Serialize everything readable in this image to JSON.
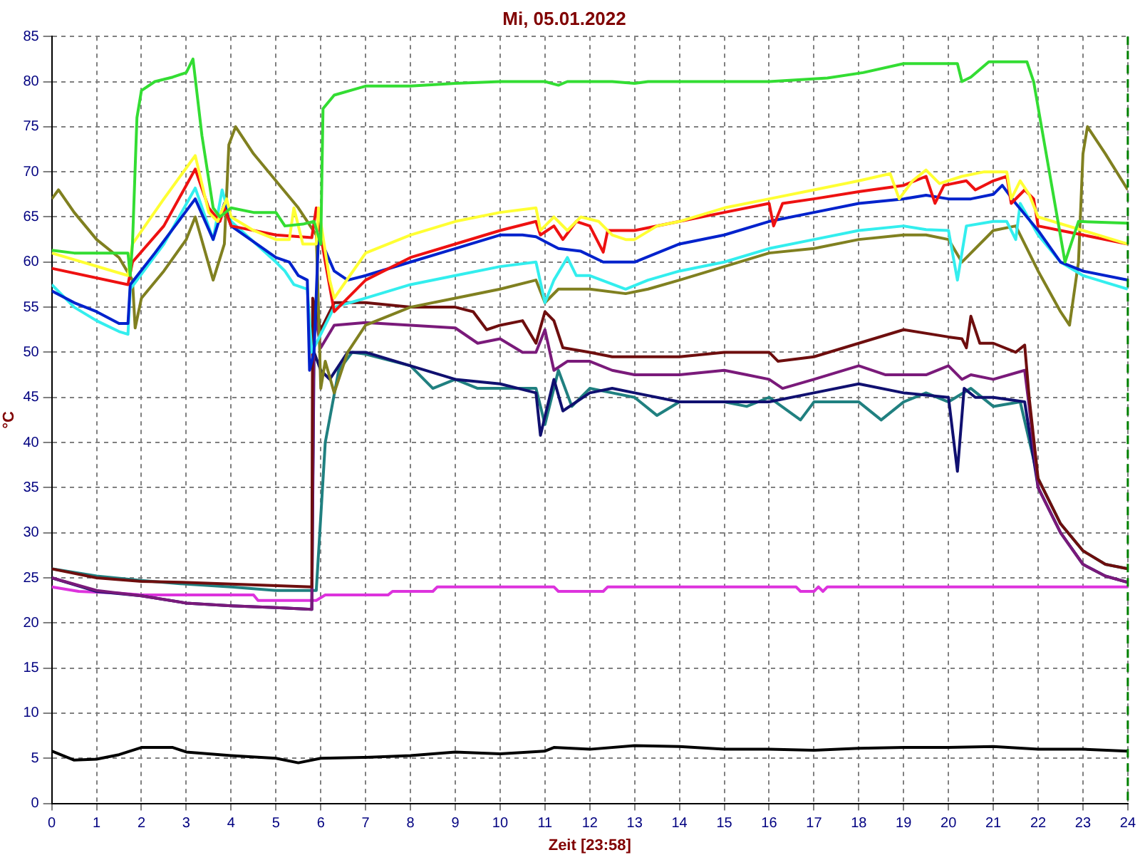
{
  "chart_data": {
    "type": "line",
    "title": "Mi, 05.01.2022",
    "xlabel": "Zeit [23:58]",
    "ylabel": "°C",
    "xlim": [
      0,
      24
    ],
    "xticks": [
      0,
      1,
      2,
      3,
      4,
      5,
      6,
      7,
      8,
      9,
      10,
      11,
      12,
      13,
      14,
      15,
      16,
      17,
      18,
      19,
      20,
      21,
      22,
      23,
      24
    ],
    "ylim": [
      0,
      85
    ],
    "yticks": [
      0,
      5,
      10,
      15,
      20,
      25,
      30,
      35,
      40,
      45,
      50,
      55,
      60,
      65,
      70,
      75,
      80,
      85
    ],
    "grid": true,
    "legend": false,
    "marker": "none",
    "line_style": "solid",
    "ref_lines": [
      {
        "axis": "x",
        "value": 24,
        "color": "#008000",
        "line_style": "dashed"
      }
    ],
    "series": [
      {
        "color": "#33dd33",
        "x": [
          0,
          0.5,
          1,
          1.7,
          1.75,
          1.8,
          1.9,
          2,
          2.3,
          2.7,
          3,
          3.15,
          3.35,
          3.6,
          3.75,
          4,
          4.5,
          5,
          5.2,
          5.6,
          5.85,
          6,
          6.05,
          6.3,
          7,
          8,
          9,
          10,
          11,
          11.3,
          11.5,
          12.5,
          13,
          13.3,
          16,
          17.3,
          18.1,
          19,
          20.2,
          20.3,
          20.5,
          20.9,
          21.75,
          21.9,
          22.6,
          22.9,
          24
        ],
        "values": [
          61.3,
          61,
          61,
          61,
          58.5,
          62,
          76,
          79,
          80,
          80.5,
          81,
          82.5,
          74,
          66,
          65,
          66,
          65.5,
          65.5,
          64,
          64.2,
          64.5,
          62,
          77,
          78.5,
          79.5,
          79.5,
          79.8,
          80,
          80,
          79.6,
          80,
          80,
          79.8,
          80,
          80,
          80.4,
          81,
          82,
          82,
          80,
          80.5,
          82.2,
          82.2,
          80,
          60,
          64.5,
          64.3
        ]
      },
      {
        "color": "#ffff33",
        "x": [
          0,
          1.7,
          1.8,
          2.5,
          3.2,
          3.5,
          3.7,
          3.9,
          4,
          4.5,
          5,
          5.3,
          5.4,
          5.6,
          5.9,
          5.95,
          6.2,
          6.3,
          7,
          8,
          9,
          10,
          10.8,
          10.9,
          11.2,
          11.5,
          11.8,
          12.2,
          12.5,
          12.8,
          13,
          13.5,
          14,
          15,
          16,
          17,
          18,
          18.7,
          18.9,
          19.2,
          19.5,
          19.8,
          20.3,
          20.8,
          21.3,
          21.4,
          21.6,
          21.8,
          22,
          23,
          24
        ],
        "values": [
          61,
          58.5,
          62,
          67,
          71.8,
          65.5,
          64.5,
          67,
          65,
          63.5,
          62.5,
          62.5,
          66,
          62,
          62,
          66,
          58,
          56,
          61,
          63,
          64.5,
          65.5,
          66,
          63.5,
          65,
          63.5,
          65,
          64.5,
          63,
          62.5,
          62.5,
          64,
          64.5,
          66,
          67,
          68,
          69,
          69.8,
          67,
          69,
          70.2,
          68.7,
          69.5,
          70,
          70,
          67,
          69,
          67.5,
          65,
          63.5,
          62
        ]
      },
      {
        "color": "#ee1111",
        "x": [
          0,
          1.7,
          1.8,
          2.5,
          3.2,
          3.5,
          3.75,
          3.85,
          4,
          5,
          5.8,
          5.9,
          6.1,
          6.3,
          7,
          8,
          9,
          10,
          10.8,
          10.9,
          11.2,
          11.4,
          11.7,
          12,
          12.3,
          12.4,
          13,
          14,
          15,
          16,
          16.1,
          16.3,
          17,
          18,
          19,
          19.5,
          19.7,
          19.9,
          20.4,
          20.6,
          21,
          21.3,
          21.4,
          21.7,
          21.9,
          22,
          22.5,
          23,
          24
        ],
        "values": [
          59.3,
          57.5,
          60,
          64,
          70.3,
          66,
          64.5,
          66,
          64,
          63,
          62.7,
          66,
          60,
          54.5,
          58,
          60.5,
          62,
          63.5,
          64.5,
          63,
          64,
          62.5,
          64.5,
          64,
          61.1,
          63.5,
          63.5,
          64.5,
          65.5,
          66.5,
          64,
          66.5,
          67,
          67.8,
          68.5,
          69.5,
          66.5,
          68.5,
          69,
          68,
          69,
          69.5,
          66.5,
          68,
          67,
          64,
          63.5,
          63,
          62
        ]
      },
      {
        "color": "#0022cc",
        "x": [
          0,
          0.5,
          1,
          1.5,
          1.7,
          1.75,
          2.3,
          3.2,
          3.6,
          3.85,
          4,
          5,
          5.3,
          5.5,
          5.7,
          5.75,
          5.85,
          5.95,
          6.3,
          6.6,
          7,
          8,
          9,
          10,
          10.5,
          10.8,
          11.3,
          11.8,
          12.3,
          13,
          13.5,
          14,
          15,
          16,
          17,
          18,
          19,
          19.5,
          20,
          20.5,
          21,
          21.2,
          21.5,
          22,
          22.5,
          23,
          24
        ],
        "values": [
          56.8,
          55.5,
          54.5,
          53.2,
          53.2,
          57.5,
          61,
          67,
          62.5,
          66.5,
          64,
          60.5,
          60,
          58.5,
          58,
          48,
          50,
          63,
          59,
          58,
          58.5,
          60,
          61.5,
          63,
          63,
          62.8,
          61.5,
          61.2,
          60,
          60,
          61,
          62,
          63,
          64.5,
          65.5,
          66.5,
          67,
          67.4,
          67,
          67,
          67.5,
          68.5,
          66.5,
          63.5,
          60,
          59,
          58
        ]
      },
      {
        "color": "#33eeee",
        "x": [
          0,
          0.5,
          1,
          1.5,
          1.7,
          1.75,
          2.5,
          3.2,
          3.6,
          3.8,
          4,
          5,
          5.2,
          5.4,
          5.7,
          5.8,
          6,
          6.3,
          7,
          8,
          9,
          10,
          10.8,
          11,
          11.2,
          11.5,
          11.7,
          12,
          12.8,
          13.3,
          14,
          15,
          16,
          17,
          18,
          19,
          19.5,
          20,
          20.2,
          20.4,
          21,
          21.3,
          21.5,
          21.6,
          22,
          22.5,
          23,
          24
        ],
        "values": [
          57.5,
          55,
          53.5,
          52.3,
          52,
          57,
          62,
          68.2,
          62.5,
          68,
          64.5,
          60,
          59,
          57.5,
          57,
          50,
          52,
          55,
          56,
          57.5,
          58.5,
          59.5,
          60,
          55.5,
          58,
          60.5,
          58.5,
          58.5,
          57,
          58,
          59,
          60,
          61.5,
          62.5,
          63.5,
          64,
          63.6,
          63.5,
          58,
          64,
          64.5,
          64.5,
          62.5,
          66.5,
          63,
          60,
          58.5,
          57
        ]
      },
      {
        "color": "#808020",
        "x": [
          0,
          0.15,
          0.5,
          1,
          1.5,
          1.8,
          1.86,
          2,
          2.5,
          3,
          3.2,
          3.6,
          3.85,
          3.95,
          4.1,
          4.5,
          5,
          5.5,
          5.9,
          6,
          6.1,
          6.3,
          6.6,
          7,
          8,
          9,
          10,
          10.8,
          11,
          11.3,
          12,
          12.8,
          13.3,
          14,
          15,
          16,
          17,
          18,
          19,
          19.5,
          20,
          20.3,
          21,
          21.5,
          21.7,
          22,
          22.5,
          22.7,
          22.9,
          23,
          23.1,
          23.5,
          24
        ],
        "values": [
          67,
          68,
          65.5,
          62.5,
          60.5,
          58,
          52.7,
          56,
          59,
          62.5,
          65,
          58,
          62,
          73,
          75,
          72,
          69,
          66,
          63,
          46,
          49,
          45.5,
          50,
          53,
          55,
          56,
          57,
          58,
          55.5,
          57,
          57,
          56.5,
          57,
          58,
          59.5,
          61,
          61.5,
          62.5,
          63,
          63,
          62.5,
          60,
          63.5,
          64,
          62,
          59,
          54.5,
          53,
          60,
          72,
          75,
          72,
          68
        ]
      },
      {
        "color": "#6e0e0e",
        "x": [
          0,
          1,
          2,
          2.9,
          5.8,
          5.82,
          6,
          6.3,
          7,
          8,
          9,
          9.4,
          9.7,
          10,
          10.5,
          10.8,
          11,
          11.2,
          11.4,
          12,
          12.5,
          13,
          14,
          15,
          16,
          16.2,
          17,
          18,
          19,
          20,
          20.3,
          20.4,
          20.5,
          20.7,
          21,
          21.5,
          21.7,
          21.8,
          22,
          22.5,
          23,
          23.5,
          24
        ],
        "values": [
          26,
          25,
          24.6,
          24.5,
          24,
          56,
          52.5,
          55.5,
          55.5,
          55,
          55,
          54.5,
          52.5,
          53,
          53.5,
          51,
          54.5,
          53.5,
          50.5,
          50,
          49.5,
          49.5,
          49.5,
          50,
          50,
          49,
          49.5,
          51,
          52.5,
          51.7,
          51.5,
          50.5,
          54,
          51,
          51,
          50,
          50.8,
          45,
          36,
          31,
          28,
          26.5,
          26
        ]
      },
      {
        "color": "#7a1a7a",
        "x": [
          0,
          1,
          2,
          3,
          4,
          5,
          5.8,
          5.85,
          6,
          6.3,
          7,
          8,
          9,
          9.5,
          10,
          10.5,
          10.8,
          11,
          11.2,
          11.5,
          12,
          12.5,
          13,
          14,
          15,
          15.5,
          16,
          16.3,
          17,
          18,
          18.6,
          19,
          19.5,
          20,
          20.3,
          20.5,
          21,
          21.7,
          21.8,
          22,
          22.5,
          23,
          23.5,
          24
        ],
        "values": [
          25,
          23.6,
          23,
          22.2,
          21.9,
          21.7,
          21.5,
          55,
          50.5,
          53,
          53.3,
          53,
          52.7,
          51,
          51.5,
          50,
          50,
          52.5,
          48,
          49,
          49,
          48,
          47.5,
          47.5,
          48,
          47.5,
          47,
          46,
          47,
          48.5,
          47.5,
          47.5,
          47.5,
          48.5,
          47,
          47.5,
          47,
          48,
          44,
          35,
          30,
          26.5,
          25.2,
          24.5
        ]
      },
      {
        "color": "#101070",
        "x": [
          0,
          1,
          2,
          3,
          4,
          5,
          5.8,
          5.85,
          6,
          6.2,
          6.6,
          7,
          8,
          9,
          10,
          10.8,
          10.9,
          11.2,
          11.4,
          12,
          12.5,
          13,
          14,
          15,
          16,
          17,
          18,
          19,
          20,
          20.2,
          20.35,
          20.6,
          21,
          21.7,
          22,
          22.5,
          23,
          23.5,
          24
        ],
        "values": [
          25,
          23.5,
          23,
          22.2,
          21.9,
          21.7,
          21.5,
          50,
          48,
          47,
          50,
          50,
          48.5,
          47,
          46.5,
          45.5,
          40.8,
          47,
          43.5,
          45.5,
          46,
          45.5,
          44.5,
          44.5,
          44.5,
          45.5,
          46.5,
          45.5,
          45,
          36.8,
          46,
          45,
          45,
          44.5,
          35,
          30,
          26.5,
          25.2,
          24.5
        ]
      },
      {
        "color": "#208080",
        "x": [
          0,
          1,
          2,
          3,
          4,
          5,
          5.9,
          6.1,
          6.4,
          6.7,
          7,
          8,
          8.5,
          9,
          9.5,
          10,
          10.8,
          11,
          11.3,
          11.6,
          12,
          12.5,
          13,
          13.5,
          14,
          15,
          15.5,
          16,
          16.7,
          17,
          18,
          18.5,
          19,
          19.5,
          20,
          20.5,
          21,
          21.6,
          22,
          22.5,
          23,
          23.5,
          24
        ],
        "values": [
          26,
          25.2,
          24.7,
          24.3,
          24,
          23.6,
          23.6,
          40,
          48,
          50,
          49.8,
          48.5,
          46,
          47,
          46,
          46,
          46,
          42,
          48,
          44,
          46,
          45.5,
          45,
          43,
          44.5,
          44.5,
          44,
          45,
          42.5,
          44.5,
          44.5,
          42.5,
          44.5,
          45.5,
          44.5,
          46,
          44,
          44.5,
          36,
          31,
          28,
          26.5,
          26
        ]
      },
      {
        "color": "#dd33dd",
        "x": [
          0,
          0.6,
          1.5,
          2,
          4.5,
          4.6,
          5.9,
          6.1,
          7.5,
          7.6,
          8.5,
          8.6,
          11.2,
          11.3,
          12.3,
          12.4,
          16.6,
          16.7,
          17,
          17.1,
          17.2,
          17.3,
          24
        ],
        "values": [
          24,
          23.5,
          23.3,
          23.1,
          23.1,
          22.5,
          22.5,
          23.1,
          23.1,
          23.5,
          23.5,
          24,
          24,
          23.5,
          23.5,
          24,
          24,
          23.5,
          23.5,
          24,
          23.5,
          24,
          24
        ]
      },
      {
        "color": "#000000",
        "x": [
          0,
          0.5,
          1,
          1.5,
          2,
          2.7,
          3,
          4,
          5,
          5.5,
          6,
          7,
          8,
          9,
          10,
          11,
          11.2,
          12,
          13,
          14,
          15,
          16,
          17,
          18,
          19,
          20,
          21,
          22,
          23,
          24
        ],
        "values": [
          5.8,
          4.8,
          4.9,
          5.4,
          6.2,
          6.2,
          5.7,
          5.3,
          5,
          4.5,
          5,
          5.1,
          5.3,
          5.7,
          5.5,
          5.8,
          6.2,
          6,
          6.4,
          6.3,
          6,
          6,
          5.9,
          6.1,
          6.2,
          6.2,
          6.3,
          6,
          6,
          5.8
        ]
      }
    ]
  }
}
